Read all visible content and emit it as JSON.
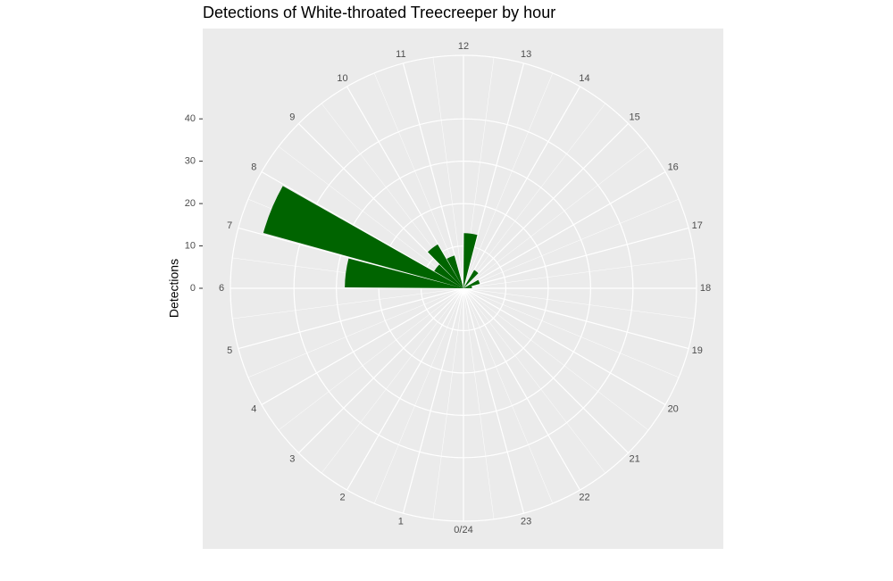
{
  "chart_data": {
    "type": "polar_bar",
    "title": "Detections of White-throated Treecreeper by hour",
    "ylabel": "Detections",
    "x": [
      0,
      1,
      2,
      3,
      4,
      5,
      6,
      7,
      8,
      9,
      10,
      11,
      12,
      13,
      14,
      15,
      16,
      17,
      18,
      19,
      20,
      21,
      22,
      23
    ],
    "values": [
      0,
      0,
      0,
      0,
      0,
      0,
      28,
      49,
      8,
      12,
      8,
      0,
      13,
      0,
      5,
      0,
      4,
      2,
      0,
      0,
      0,
      0,
      0,
      0
    ],
    "color": "#006400",
    "xlim": [
      0,
      24
    ],
    "xticks": [
      {
        "value": 0,
        "label": "0/24"
      },
      1,
      2,
      3,
      4,
      5,
      6,
      7,
      8,
      9,
      10,
      11,
      12,
      13,
      14,
      15,
      16,
      17,
      18,
      19,
      20,
      21,
      22,
      23
    ],
    "ylim": [
      0,
      55
    ],
    "yticks": [
      0,
      10,
      20,
      30,
      40
    ],
    "grid": true
  }
}
